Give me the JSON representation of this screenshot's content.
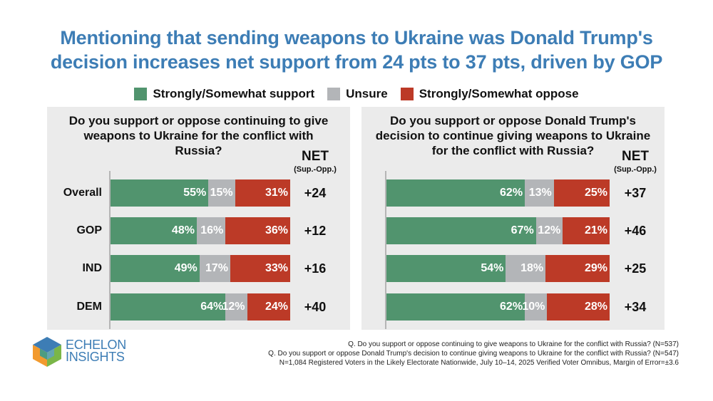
{
  "title_lines": [
    "Mentioning that sending weapons to Ukraine was Donald Trump's",
    "decision increases net support from 24 pts to 37 pts, driven by GOP"
  ],
  "colors": {
    "support": "#51946e",
    "unsure": "#b3b5b8",
    "oppose": "#bc3a27",
    "title": "#3d7db5"
  },
  "chart_data": [
    {
      "type": "bar",
      "stacked": true,
      "orientation": "horizontal",
      "title_lines": [
        "Do you support or oppose continuing to give",
        "weapons to Ukraine for the conflict with",
        "Russia?"
      ],
      "categories": [
        "Overall",
        "GOP",
        "IND",
        "DEM"
      ],
      "series": [
        {
          "name": "Strongly/Somewhat support",
          "values": [
            55,
            48,
            49,
            64
          ],
          "labels": [
            "55%",
            "48%",
            "49%",
            "64%"
          ]
        },
        {
          "name": "Unsure",
          "values": [
            15,
            16,
            17,
            12
          ],
          "labels": [
            "15%",
            "16%",
            "17%",
            "12%"
          ]
        },
        {
          "name": "Strongly/Somewhat oppose",
          "values": [
            31,
            36,
            33,
            24
          ],
          "labels": [
            "31%",
            "36%",
            "33%",
            "24%"
          ]
        }
      ],
      "net_header": "NET",
      "net_subheader": "(Sup.-Opp.)",
      "net": [
        "+24",
        "+12",
        "+16",
        "+40"
      ],
      "xlim": [
        0,
        100
      ]
    },
    {
      "type": "bar",
      "stacked": true,
      "orientation": "horizontal",
      "title_lines": [
        "Do you support or oppose Donald Trump's",
        "decision to continue giving weapons to Ukraine",
        "for the conflict with Russia?"
      ],
      "categories": [
        "Overall",
        "GOP",
        "IND",
        "DEM"
      ],
      "series": [
        {
          "name": "Strongly/Somewhat support",
          "values": [
            62,
            67,
            54,
            62
          ],
          "labels": [
            "62%",
            "67%",
            "54%",
            "62%"
          ]
        },
        {
          "name": "Unsure",
          "values": [
            13,
            12,
            18,
            10
          ],
          "labels": [
            "13%",
            "12%",
            "18%",
            "10%"
          ]
        },
        {
          "name": "Strongly/Somewhat oppose",
          "values": [
            25,
            21,
            29,
            28
          ],
          "labels": [
            "25%",
            "21%",
            "29%",
            "28%"
          ]
        }
      ],
      "net_header": "NET",
      "net_subheader": "(Sup.-Opp.)",
      "net": [
        "+37",
        "+46",
        "+25",
        "+34"
      ],
      "xlim": [
        0,
        100
      ]
    }
  ],
  "legend": [
    {
      "label": "Strongly/Somewhat support",
      "color": "#51946e"
    },
    {
      "label": "Unsure",
      "color": "#b3b5b8"
    },
    {
      "label": "Strongly/Somewhat oppose",
      "color": "#bc3a27"
    }
  ],
  "logo": {
    "line1": "ECHELON",
    "line2": "INSIGHTS"
  },
  "footnotes": [
    "Q. Do you support or oppose continuing to give weapons to Ukraine for the conflict with Russia? (N=537)",
    "Q. Do you support or oppose Donald Trump's decision to continue giving weapons to Ukraine for the conflict with Russia? (N=547)",
    "N=1,084 Registered Voters in the Likely Electorate Nationwide, July 10–14, 2025 Verified Voter Omnibus, Margin of Error=±3.6"
  ]
}
